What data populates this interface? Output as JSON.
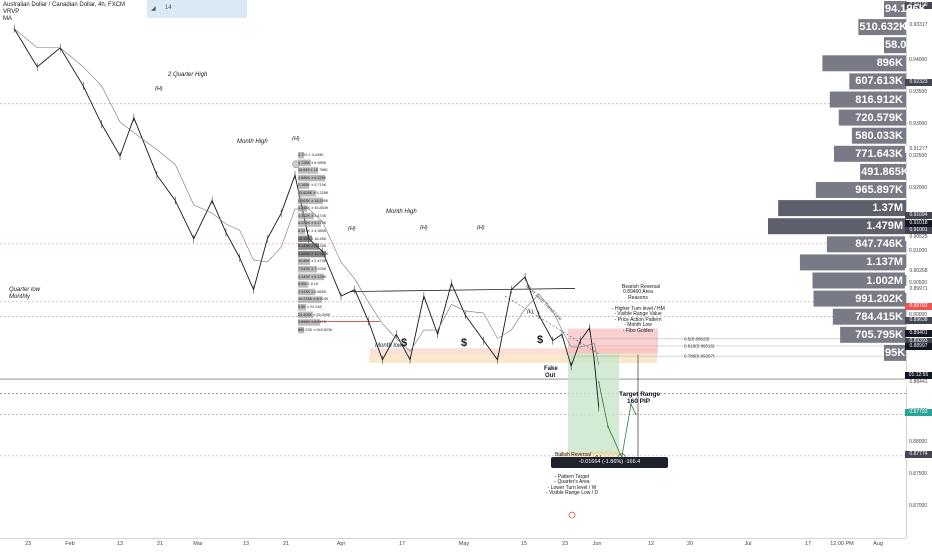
{
  "header": {
    "title": "Australian Dollar / Canadian Dollar, 4h, FXCM",
    "indicator_1": "VRVP",
    "indicator_2": "MA",
    "legend_value": "14"
  },
  "chart_data": {
    "type": "line",
    "title": "Australian Dollar / Canadian Dollar, 4h, FXCM",
    "ylim": [
      0.865,
      0.9495
    ],
    "y_ticks": [
      0.87,
      0.875,
      0.88,
      0.885,
      0.89,
      0.895,
      0.9,
      0.905,
      0.91,
      0.915,
      0.92,
      0.925,
      0.93,
      0.935,
      0.94
    ],
    "x_ticks": [
      "23",
      "Feb",
      "13",
      "21",
      "Mar",
      "13",
      "21",
      "Apr",
      "17",
      "May",
      "15",
      "23",
      "Jun",
      "12",
      "20",
      "Jul",
      "17",
      "12:00 PM",
      "Aug"
    ],
    "price_line": [
      [
        "Jan 20",
        0.945
      ],
      [
        "Jan 25",
        0.939
      ],
      [
        "Jan 30",
        0.942
      ],
      [
        "Feb 4",
        0.936
      ],
      [
        "Feb 8",
        0.93
      ],
      [
        "Feb 12",
        0.925
      ],
      [
        "Feb 15",
        0.931
      ],
      [
        "Feb 20",
        0.922
      ],
      [
        "Feb 24",
        0.918
      ],
      [
        "Feb 28",
        0.912
      ],
      [
        "Mar 4",
        0.918
      ],
      [
        "Mar 7",
        0.913
      ],
      [
        "Mar 10",
        0.909
      ],
      [
        "Mar 13",
        0.904
      ],
      [
        "Mar 16",
        0.912
      ],
      [
        "Mar 19",
        0.916
      ],
      [
        "Mar 22",
        0.922
      ],
      [
        "Mar 25",
        0.912
      ],
      [
        "Mar 28",
        0.91
      ],
      [
        "Apr 1",
        0.903
      ],
      [
        "Apr 4",
        0.904
      ],
      [
        "Apr 7",
        0.899
      ],
      [
        "Apr 10",
        0.893
      ],
      [
        "Apr 13",
        0.897
      ],
      [
        "Apr 16",
        0.893
      ],
      [
        "Apr 19",
        0.903
      ],
      [
        "Apr 22",
        0.897
      ],
      [
        "Apr 25",
        0.905
      ],
      [
        "Apr 28",
        0.9
      ],
      [
        "May 2",
        0.896
      ],
      [
        "May 5",
        0.893
      ],
      [
        "May 8",
        0.904
      ],
      [
        "May 11",
        0.906
      ],
      [
        "May 14",
        0.9
      ],
      [
        "May 17",
        0.896
      ],
      [
        "May 19",
        0.897
      ],
      [
        "May 21",
        0.892
      ],
      [
        "May 23",
        0.896
      ],
      [
        "May 25",
        0.898
      ],
      [
        "May 26",
        0.893
      ],
      [
        "May 27",
        0.8855
      ]
    ],
    "projection": [
      [
        "May 27",
        0.8895
      ],
      [
        "May 29",
        0.8825
      ],
      [
        "Jun 1",
        0.8777
      ],
      [
        "Jun 3",
        0.886
      ],
      [
        "Jun 4",
        0.8845
      ]
    ],
    "levels": [
      {
        "label": "0.5(0.89628)",
        "value": 0.89628
      },
      {
        "label": "0.618(0.89516)",
        "value": 0.89516
      },
      {
        "label": "0.786(0.89357)",
        "value": 0.89357
      }
    ],
    "volume_profile": [
      {
        "label": "94.196K",
        "price": 0.9465
      },
      {
        "label": "510.632K",
        "price": 0.9425
      },
      {
        "label": "58.047K",
        "price": 0.9385
      },
      {
        "label": "896K",
        "price": 0.9345
      },
      {
        "label": "607.613K",
        "price": 0.9305
      },
      {
        "label": "816.912K",
        "price": 0.9265
      },
      {
        "label": "720.579K",
        "price": 0.9225
      },
      {
        "label": "580.033K",
        "price": 0.9185
      },
      {
        "label": "771.643K",
        "price": 0.9145
      },
      {
        "label": "491.865K",
        "price": 0.9105
      },
      {
        "label": "965.897K",
        "price": 0.9065
      },
      {
        "label": "1.37M",
        "price": 0.9025
      },
      {
        "label": "1.479M",
        "price": 0.8985
      },
      {
        "label": "847.746K",
        "price": 0.8945
      },
      {
        "label": "1.137M",
        "price": 0.8905
      },
      {
        "label": "1.002M",
        "price": 0.8865
      },
      {
        "label": "991.202K",
        "price": 0.8825
      },
      {
        "label": "784.415K",
        "price": 0.8785
      },
      {
        "label": "705.795K",
        "price": 0.8745
      },
      {
        "label": "95K",
        "price": 0.8705
      }
    ],
    "price_tags": [
      {
        "text": "0.94190",
        "color": "#434651"
      },
      {
        "text": "0.93317",
        "color": "#ffffff"
      },
      {
        "text": "0.92323",
        "color": "#434651"
      },
      {
        "text": "0.91277",
        "color": "#ffffff"
      },
      {
        "text": "0.91094",
        "color": "#434651"
      },
      {
        "text": "0.91018",
        "color": "#131722"
      },
      {
        "text": "0.91001",
        "color": "#434651"
      },
      {
        "text": "0.90525",
        "color": "#ffffff"
      },
      {
        "text": "0.90268",
        "color": "#ffffff"
      },
      {
        "text": "0.89971",
        "color": "#ffffff"
      },
      {
        "text": "0.89792",
        "color": "#ef5350"
      },
      {
        "text": "0.89638",
        "color": "#434651"
      },
      {
        "text": "0.89401",
        "color": "#131722"
      },
      {
        "text": "0.89393",
        "color": "#434651"
      },
      {
        "text": "0.88997",
        "color": "#131722"
      },
      {
        "text": "01:12:55",
        "color": "#131722"
      },
      {
        "text": "0.88441",
        "color": "#ffffff"
      },
      {
        "text": "0.87793",
        "color": "#26a69a"
      },
      {
        "text": "0.87774",
        "color": "#434651"
      }
    ]
  },
  "annotations": {
    "two_quarter_high": "2 Quarter High",
    "h1": "(H)",
    "month_high_left": "Month High",
    "h2": "(H)",
    "month_high_right": "Month High",
    "h3": "(H)",
    "h4": "(H)",
    "h5": "(H)",
    "quarter_low": "Quarter low",
    "monthly": "Monthly",
    "month_low": "Month low",
    "dollar1": "$",
    "dollar2": "$",
    "dollar3": "$",
    "fake": "Fake",
    "out": "Out",
    "trendline": "Short Term Trend Line",
    "ll": "(L)",
    "ll2": "(L)",
    "bearish_title": "Bearish Reversal",
    "bearish_lines": "0.89400 Area\nReasons\n\n- Higher Turn level / HM\n- Visible Range Value\n- Price Action Pattern\n- Month Low\n- Fibo Golden",
    "bullish_title": "Bullish Reversal",
    "bullish_lines": "0.87700 Area\nReasons\n\n- Pattern Target\n- Quarter's Area\n- Lower Turn level / W\n- Visible Range Low / D",
    "target_range": "Target Range",
    "target_pips": "160 PIP",
    "range_box": "-0.01664 (-1.86%) -166.4",
    "left_profile_lines": [
      "4.729 ± 3.449K",
      "1.728K ± 6.985K",
      "16.645 ± 15.758K",
      "4.686K ± 6.225K",
      "2.165K ± 5.719K",
      "15.628K ± 5.328K",
      "4.563K ± 18.295K",
      "4.345K ± 45.854K",
      "4.312K ± 3.474K",
      "4.221K ± 9.275K",
      "6.123K ± 4.355K",
      "16.45K ± 16.45K",
      "5.143K ± 5.125K",
      "4.565K ± 12.653K",
      "10.86K ± 2.473K",
      "7.543K ± 7.325K",
      "4.345K ± 5.124K",
      "5.6M ± 5.1K",
      "3.343K ± 6.865K",
      "19.233K ± 8.924K",
      "5.5K ± 22.24K",
      "24.406K ± 26.909K",
      "8.596K ± 8.517K",
      "866.23K ± 949.823K"
    ]
  }
}
